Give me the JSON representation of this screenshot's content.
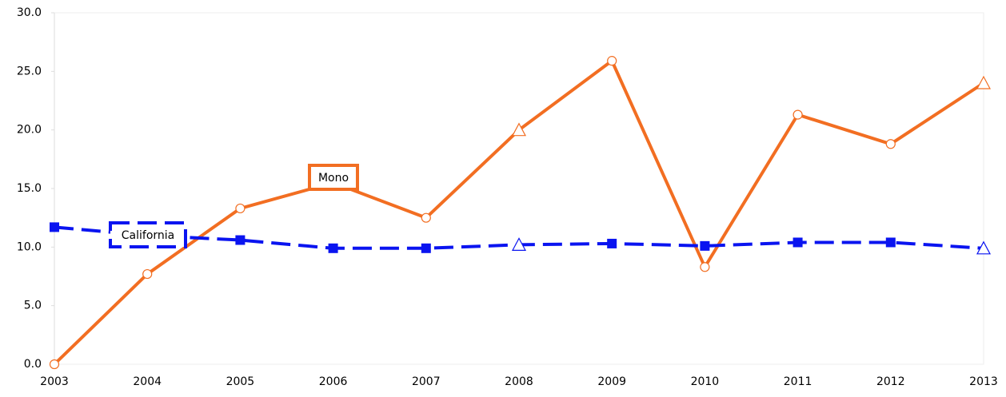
{
  "chart_data": {
    "type": "line",
    "categories": [
      "2003",
      "2004",
      "2005",
      "2006",
      "2007",
      "2008",
      "2009",
      "2010",
      "2011",
      "2012",
      "2013"
    ],
    "series": [
      {
        "name": "Mono",
        "color": "#f26e22",
        "dash": false,
        "markers": [
          "circle",
          "circle",
          "circle",
          "circle",
          "circle",
          "triangle",
          "circle",
          "circle",
          "circle",
          "circle",
          "triangle"
        ],
        "values": [
          0.0,
          7.7,
          13.3,
          15.5,
          12.5,
          20.0,
          25.9,
          8.3,
          21.3,
          18.8,
          24.0
        ]
      },
      {
        "name": "California",
        "color": "#0a14f0",
        "dash": true,
        "markers": [
          "square",
          "square",
          "square",
          "square",
          "square",
          "triangle",
          "square",
          "square",
          "square",
          "square",
          "triangle"
        ],
        "values": [
          11.7,
          11.0,
          10.6,
          9.9,
          9.9,
          10.2,
          10.3,
          10.1,
          10.4,
          10.4,
          9.9
        ]
      }
    ],
    "ylim": [
      0,
      30
    ],
    "yticks": [
      {
        "value": 0,
        "label": "0.0"
      },
      {
        "value": 5,
        "label": "5.0"
      },
      {
        "value": 10,
        "label": "10.0"
      },
      {
        "value": 15,
        "label": "15.0"
      },
      {
        "value": 20,
        "label": "20.0"
      },
      {
        "value": 25,
        "label": "25.0"
      },
      {
        "value": 30,
        "label": "30.0"
      }
    ]
  }
}
